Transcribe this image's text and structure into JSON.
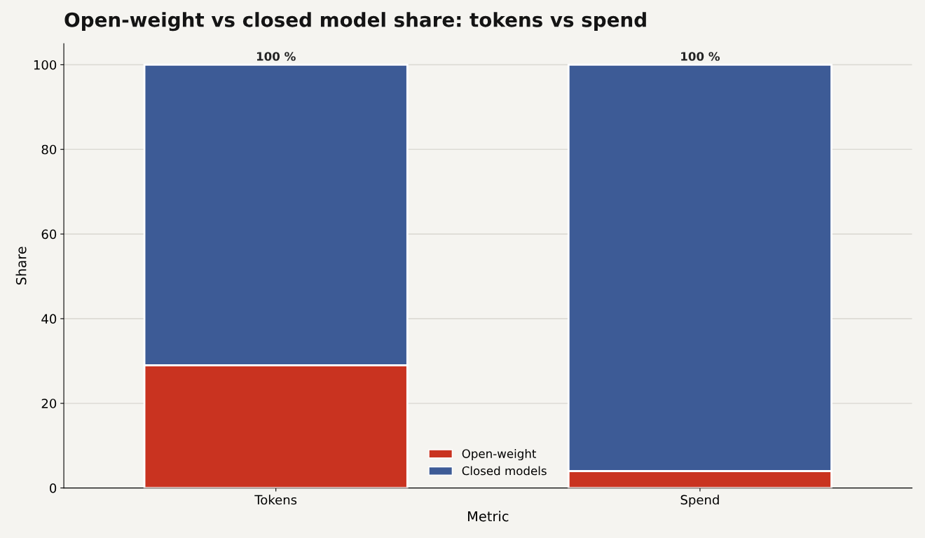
{
  "chart_data": {
    "type": "bar",
    "title": "Open-weight vs closed model share: tokens vs spend",
    "xlabel": "Metric",
    "ylabel": "Share",
    "categories": [
      "Tokens",
      "Spend"
    ],
    "stacked": true,
    "series": [
      {
        "name": "Open-weight",
        "color": "#c93320",
        "values": [
          29,
          4
        ]
      },
      {
        "name": "Closed models",
        "color": "#3d5b96",
        "values": [
          71,
          96
        ]
      }
    ],
    "totals": [
      "100 %",
      "100 %"
    ],
    "ylim": [
      0,
      105
    ],
    "yticks": [
      0,
      20,
      40,
      60,
      80,
      100
    ],
    "grid": "y",
    "legend": "bottom"
  }
}
